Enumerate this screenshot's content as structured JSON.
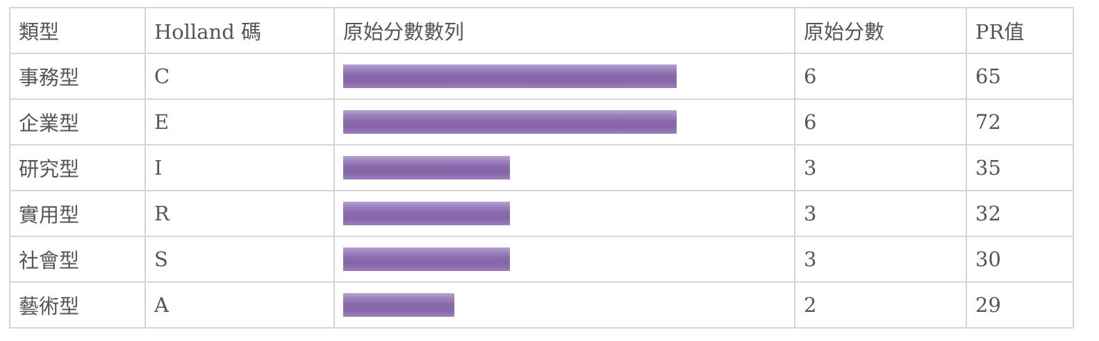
{
  "table": {
    "headers": {
      "type": "類型",
      "code": "Holland 碼",
      "bar": "原始分數數列",
      "raw": "原始分數",
      "pr": "PR值"
    },
    "bar_max_score": 8,
    "bar_color": "#8664a9",
    "rows": [
      {
        "type": "事務型",
        "code": "C",
        "raw": "6",
        "pr": "65",
        "score": 6
      },
      {
        "type": "企業型",
        "code": "E",
        "raw": "6",
        "pr": "72",
        "score": 6
      },
      {
        "type": "研究型",
        "code": "I",
        "raw": "3",
        "pr": "35",
        "score": 3
      },
      {
        "type": "實用型",
        "code": "R",
        "raw": "3",
        "pr": "32",
        "score": 3
      },
      {
        "type": "社會型",
        "code": "S",
        "raw": "3",
        "pr": "30",
        "score": 3
      },
      {
        "type": "藝術型",
        "code": "A",
        "raw": "2",
        "pr": "29",
        "score": 2
      }
    ]
  }
}
